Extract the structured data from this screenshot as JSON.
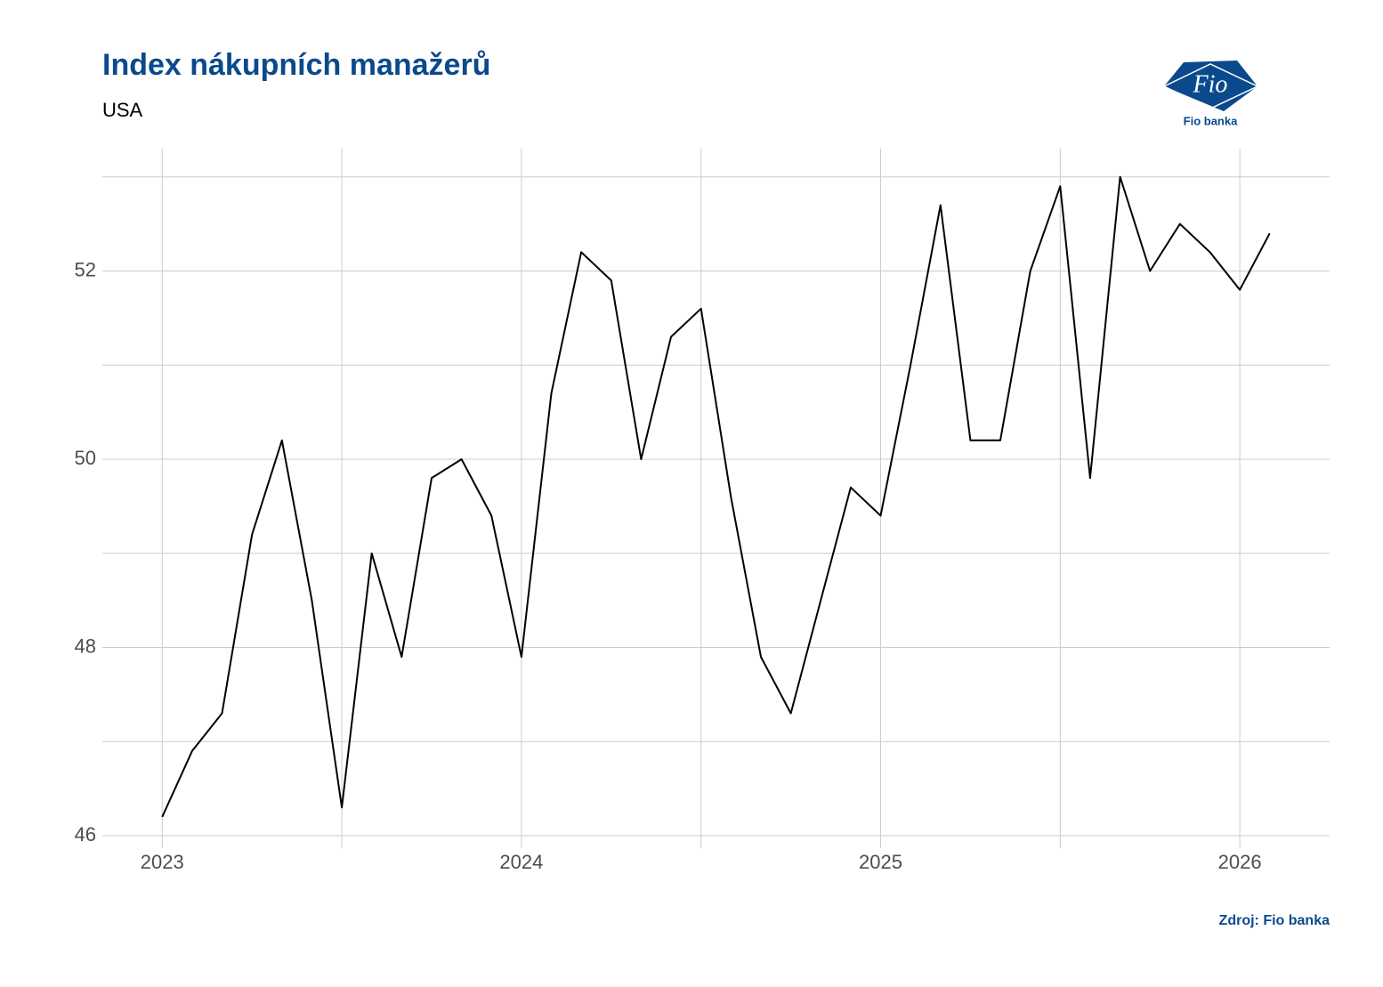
{
  "chart_data": {
    "type": "line",
    "title": "Index nákupních manažerů",
    "subtitle": "USA",
    "source": "Zdroj: Fio banka",
    "logo": {
      "mark": "Fio",
      "name": "Fio banka"
    },
    "x": [
      "2023-01",
      "2023-02",
      "2023-03",
      "2023-04",
      "2023-05",
      "2023-06",
      "2023-07",
      "2023-08",
      "2023-09",
      "2023-10",
      "2023-11",
      "2023-12",
      "2024-01",
      "2024-02",
      "2024-03",
      "2024-04",
      "2024-05",
      "2024-06",
      "2024-07",
      "2024-08",
      "2024-09",
      "2024-10",
      "2024-11",
      "2024-12",
      "2025-01",
      "2025-02",
      "2025-03",
      "2025-04",
      "2025-05",
      "2025-06",
      "2025-07",
      "2025-08",
      "2025-09",
      "2025-10",
      "2025-11",
      "2025-12",
      "2026-01",
      "2026-02"
    ],
    "series": [
      {
        "color": "#000000",
        "values": [
          46.2,
          46.9,
          47.3,
          49.2,
          50.2,
          48.5,
          46.3,
          49.0,
          47.9,
          49.8,
          50.0,
          49.4,
          47.9,
          50.7,
          52.2,
          51.9,
          50.0,
          51.3,
          51.6,
          49.6,
          47.9,
          47.3,
          48.5,
          49.7,
          49.4,
          51.0,
          52.7,
          50.2,
          50.2,
          52.0,
          52.9,
          49.8,
          53.0,
          52.0,
          52.5,
          52.2,
          51.8,
          52.4
        ]
      }
    ],
    "xlim": [
      "2022-11",
      "2026-04"
    ],
    "xticks": [
      {
        "value": "2023-01",
        "label": "2023"
      },
      {
        "value": "2024-01",
        "label": "2024"
      },
      {
        "value": "2025-01",
        "label": "2025"
      },
      {
        "value": "2026-01",
        "label": "2026"
      }
    ],
    "ylim": [
      46,
      53.3
    ],
    "yticks": [
      46,
      48,
      50,
      52
    ],
    "grid": true
  }
}
